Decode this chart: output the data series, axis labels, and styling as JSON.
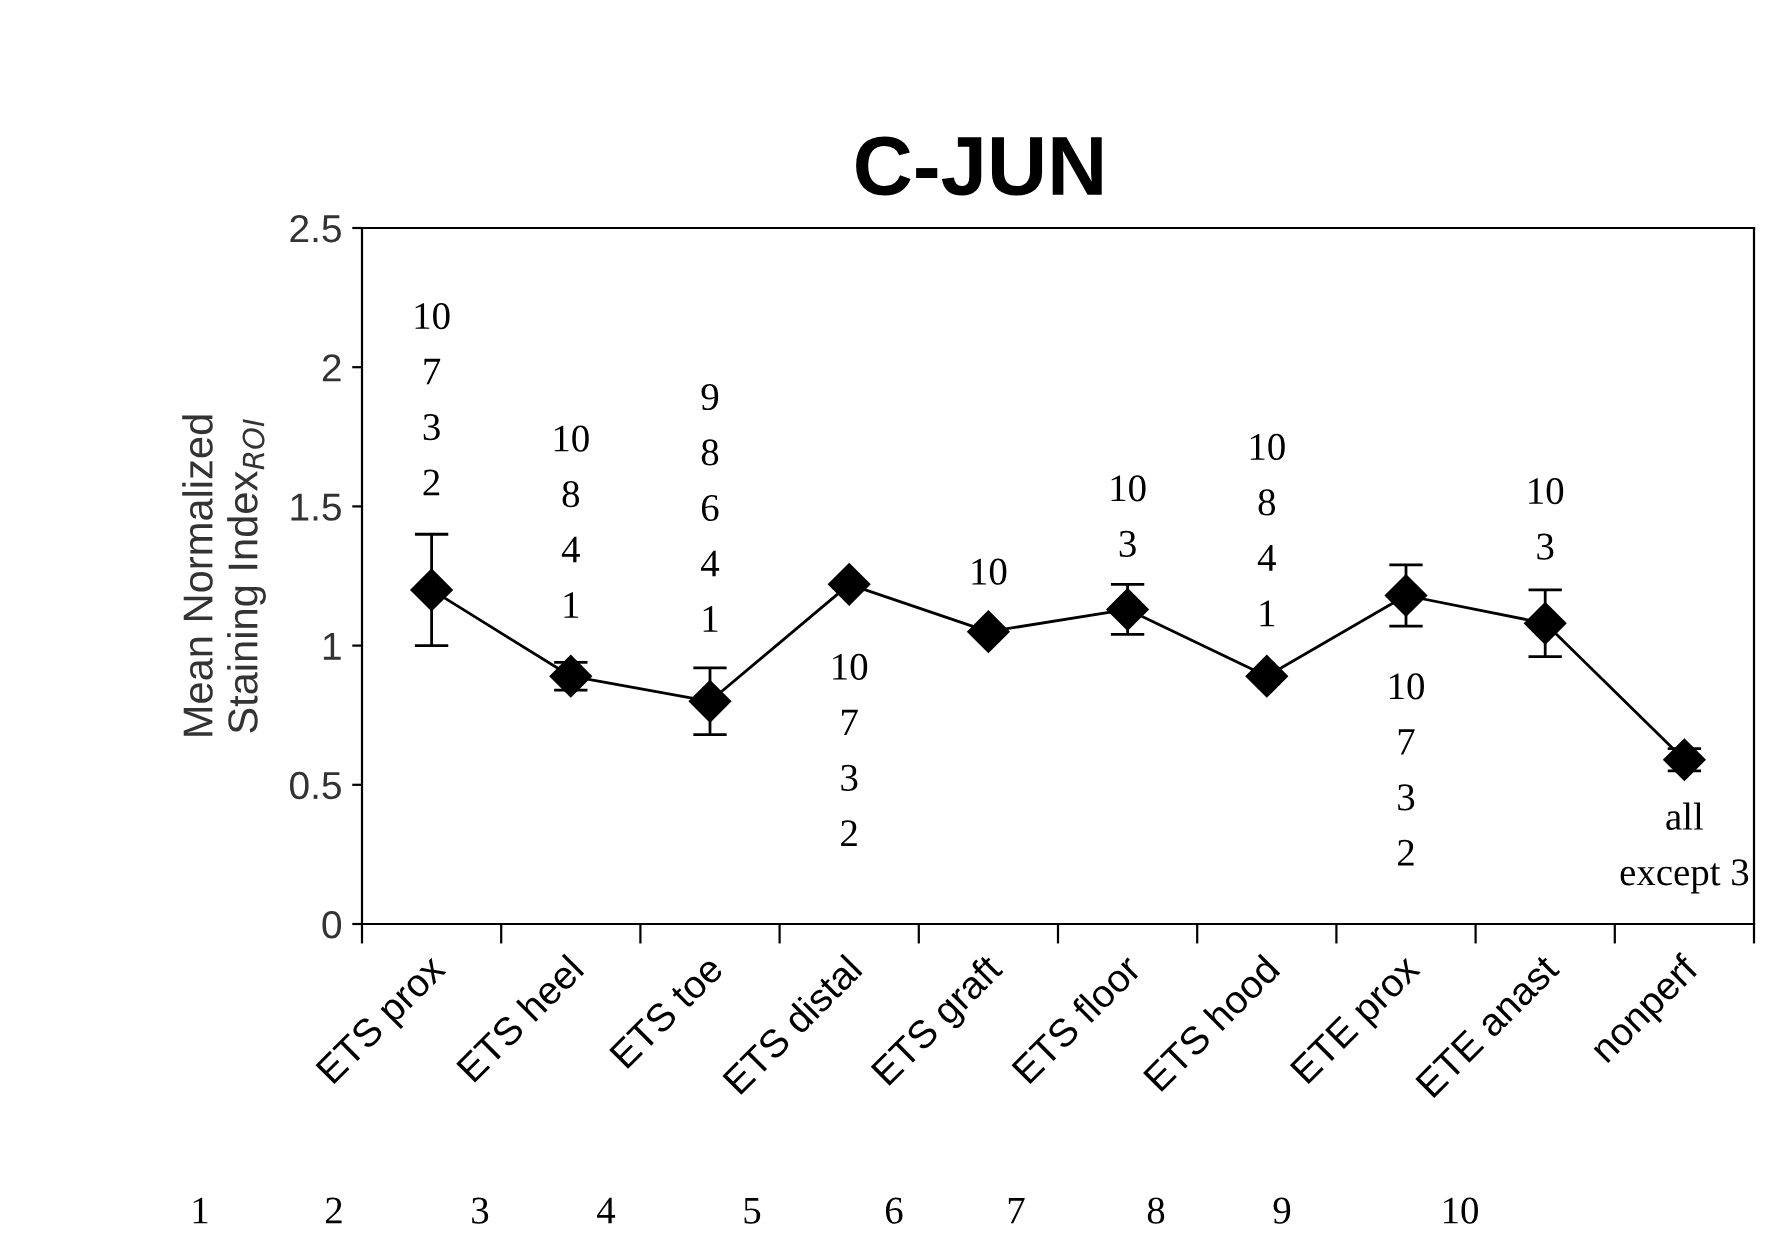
{
  "chart_data": {
    "type": "line",
    "title": "C-JUN",
    "ylabel": "Mean Normalized\nStaining Index$_{ROI}$",
    "categories": [
      "ETS prox",
      "ETS heel",
      "ETS toe",
      "ETS distal",
      "ETS graft",
      "ETS floor",
      "ETS hood",
      "ETE prox",
      "ETE anast",
      "nonperf"
    ],
    "series": [
      {
        "color": "#000000",
        "values": [
          1.2,
          0.89,
          0.8,
          1.22,
          1.05,
          1.13,
          0.89,
          1.18,
          1.08,
          0.59
        ],
        "errors": [
          0.2,
          0.05,
          0.12,
          null,
          null,
          0.09,
          null,
          0.11,
          0.12,
          0.04
        ]
      }
    ],
    "ylim": [
      0,
      2.5
    ],
    "yticks": [
      0,
      0.5,
      1,
      1.5,
      2,
      2.5
    ],
    "marker": "diamond",
    "line_style": "solid",
    "grid": false,
    "legend": false,
    "annotations": [
      "10\n7\n3\n2",
      "10\n8\n4\n1",
      "9\n8\n6\n4\n1",
      "10\n7\n3\n2",
      "10",
      "10\n3",
      "10\n8\n4\n1",
      "10\n7\n3\n2",
      "10\n3",
      "all\nexcept 3",
      "1",
      "2",
      "3",
      "4",
      "5",
      "6",
      "7",
      "8",
      "9",
      "10"
    ]
  }
}
